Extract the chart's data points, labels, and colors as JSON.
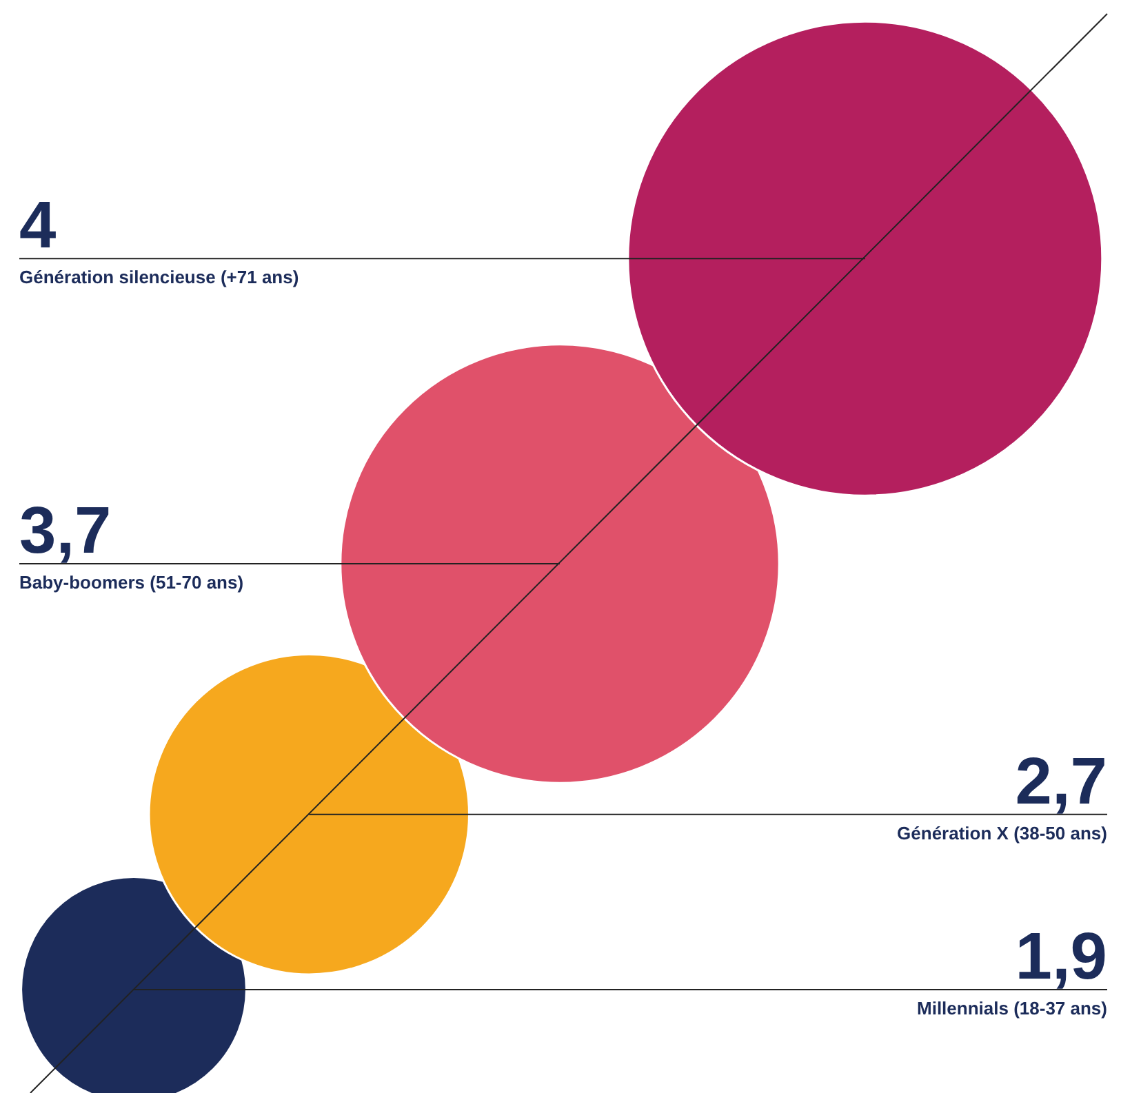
{
  "chart_data": {
    "type": "other",
    "categories": [
      "Génération silencieuse (+71 ans)",
      "Baby-boomers (51-70 ans)",
      "Génération X (38-50 ans)",
      "Millennials (18-37 ans)"
    ],
    "values": [
      4,
      3.7,
      2.7,
      1.9
    ],
    "value_labels": [
      "4",
      "3,7",
      "2,7",
      "1,9"
    ],
    "colors": [
      "#b41f5e",
      "#e0516a",
      "#f6a81e",
      "#1c2c5a"
    ]
  }
}
